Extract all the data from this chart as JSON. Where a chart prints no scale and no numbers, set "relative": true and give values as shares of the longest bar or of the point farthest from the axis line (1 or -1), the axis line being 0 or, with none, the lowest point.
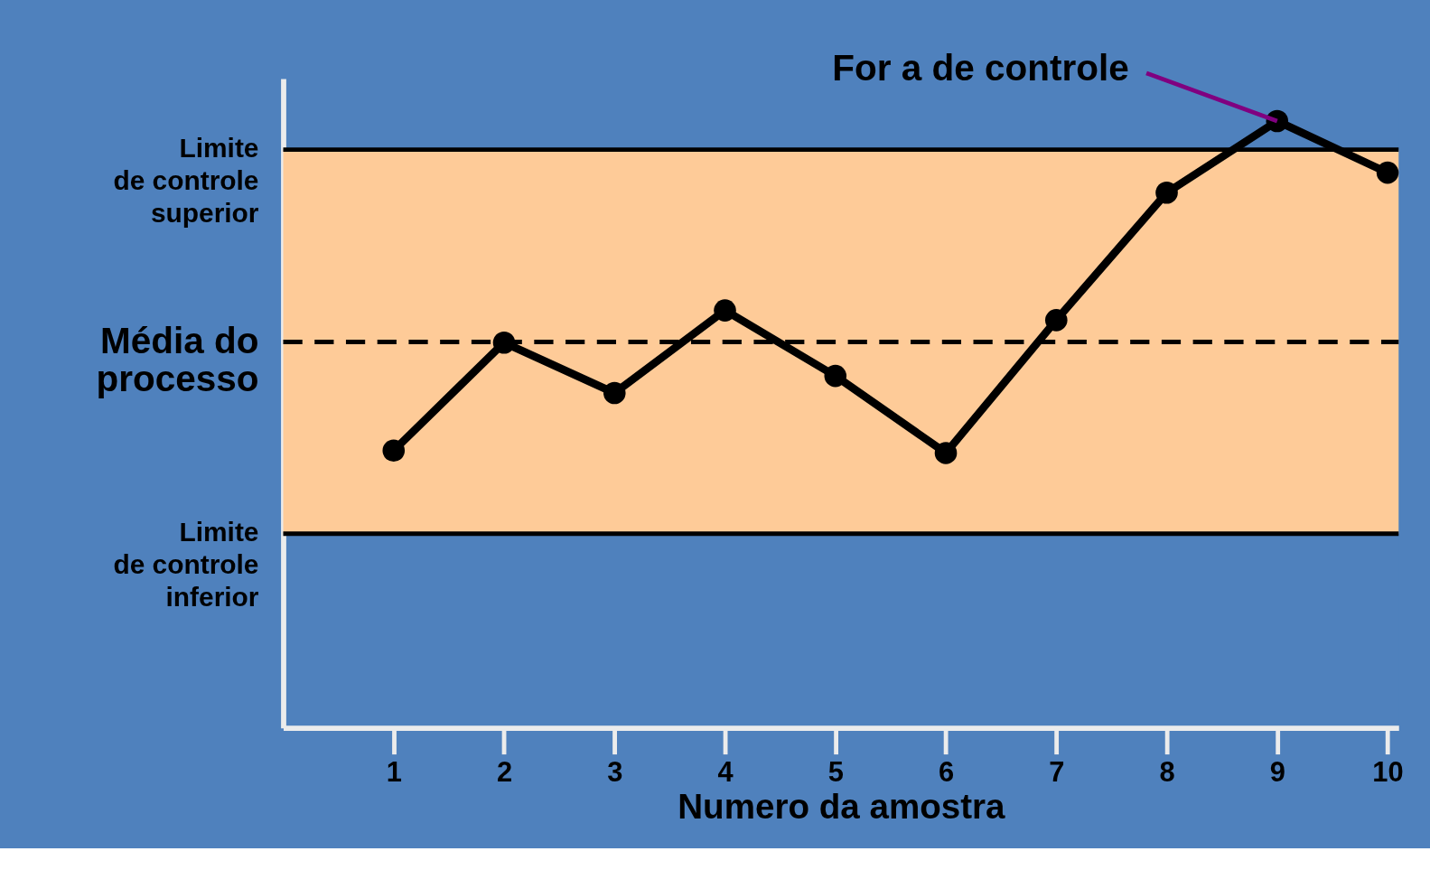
{
  "chart_data": {
    "type": "line",
    "relative": true,
    "xlabel": "Numero da amostra",
    "x": [
      1,
      2,
      3,
      4,
      5,
      6,
      7,
      8,
      9,
      10
    ],
    "xlim": [
      0,
      10.1
    ],
    "xticks": [
      1,
      2,
      3,
      4,
      5,
      6,
      7,
      8,
      9,
      10
    ],
    "series": [
      {
        "color": "#000000",
        "values": [
          0.457,
          0.635,
          0.552,
          0.688,
          0.58,
          0.453,
          0.672,
          0.882,
          1,
          0.915
        ]
      }
    ],
    "marker": "circle",
    "line_style": "solid",
    "grid": false,
    "ref_lines": [
      {
        "axis": "y",
        "value": 0.953,
        "label": "Limite\nde controle\nsuperior",
        "color": "#000000",
        "line_style": "solid"
      },
      {
        "axis": "y",
        "value": 0.636,
        "label": "Média do\nprocesso",
        "color": "#000000",
        "line_style": "dashed"
      },
      {
        "axis": "y",
        "value": 0.32,
        "label": "Limite\nde controle\ninferior",
        "color": "#000000",
        "line_style": "solid"
      }
    ],
    "bands": [
      {
        "axis": "y",
        "from": 0.32,
        "to": 0.953,
        "color": "#fecb98"
      }
    ],
    "annotations": [
      {
        "text": "For a de controle",
        "x": 9,
        "y": 1
      }
    ]
  }
}
